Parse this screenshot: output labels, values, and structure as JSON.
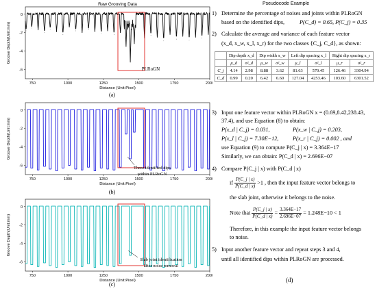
{
  "charts": {
    "a": {
      "title": "Raw Grooving Data",
      "ylabel": "Groove Depth(Unit:mm)",
      "xlabel": "Distance (Unit:Pixel)",
      "caption": "(a)",
      "annotation": "PLRoGN",
      "color": "#111111"
    },
    "b": {
      "ylabel": "Groove Depth(Unit:mm)",
      "xlabel": "Distance (Unit:Pixel)",
      "caption": "(b)",
      "annotation_line1": "Three identified dips",
      "annotation_line2": "within PLRoGN",
      "color": "#1f1fe0"
    },
    "c": {
      "ylabel": "Groove Depth(Unit:mm)",
      "xlabel": "Distance (Unit:Pixel)",
      "caption": "(c)",
      "annotation_line1": "Slab joint identification",
      "annotation_line2": "after noise removal",
      "color": "#10b8b8"
    },
    "yticks": [
      "0",
      "-2",
      "-4",
      "-6"
    ],
    "xticks": [
      "750",
      "1000",
      "1250",
      "1500",
      "1750",
      "2000"
    ]
  },
  "chart_data": [
    {
      "type": "line",
      "title": "Raw Grooving Data",
      "xlabel": "Distance (Unit:Pixel)",
      "ylabel": "Groove Depth(Unit:mm)",
      "xlim": [
        700,
        2000
      ],
      "ylim": [
        -7,
        0.8
      ],
      "grid": false,
      "dip_positions": [
        705,
        745,
        790,
        835,
        875,
        920,
        965,
        1010,
        1055,
        1100,
        1145,
        1190,
        1235,
        1280,
        1325,
        1370,
        1410,
        1440,
        1468,
        1540,
        1585,
        1630,
        1675,
        1720,
        1765,
        1810,
        1855,
        1900,
        1945,
        1990
      ],
      "dip_depths": [
        -1.8,
        -1.5,
        -1.7,
        -2.0,
        -1.6,
        -1.9,
        -2.2,
        -1.4,
        -1.8,
        -2.0,
        -1.7,
        -1.9,
        -2.1,
        -1.8,
        -2.2,
        -2.0,
        -3.5,
        -5.2,
        -3.2,
        -2.6,
        -2.3,
        -2.5,
        -2.9,
        -2.2,
        -2.7,
        -2.4,
        -2.8,
        -2.5,
        -2.6,
        -2.2
      ]
    },
    {
      "type": "line",
      "xlabel": "Distance (Unit:Pixel)",
      "ylabel": "Groove Depth(Unit:mm)",
      "xlim": [
        700,
        2000
      ],
      "ylim": [
        -7,
        0.8
      ],
      "grid": false,
      "dip_positions": [
        705,
        745,
        790,
        835,
        875,
        920,
        965,
        1010,
        1055,
        1100,
        1145,
        1190,
        1235,
        1280,
        1325,
        1370,
        1410,
        1440,
        1468,
        1540,
        1585,
        1630,
        1675,
        1720,
        1765,
        1810,
        1855,
        1900,
        1945,
        1990
      ],
      "dip_depths": [
        -6.2,
        -6.3,
        -6.5,
        -6.1,
        -6.4,
        -6.6,
        -6.3,
        -6.0,
        -6.4,
        -6.5,
        -6.2,
        -6.6,
        -6.3,
        -6.4,
        -6.5,
        -6.2,
        -2.6,
        -5.3,
        -2.4,
        -6.3,
        -6.5,
        -6.2,
        -6.6,
        -6.4,
        -6.3,
        -6.5,
        -6.2,
        -6.6,
        -6.3,
        -6.4
      ]
    },
    {
      "type": "line",
      "xlabel": "Distance (Unit:Pixel)",
      "ylabel": "Groove Depth(Unit:mm)",
      "xlim": [
        700,
        2000
      ],
      "ylim": [
        -7,
        0.8
      ],
      "grid": false,
      "dip_positions": [
        705,
        745,
        790,
        835,
        875,
        920,
        965,
        1010,
        1055,
        1100,
        1145,
        1190,
        1235,
        1280,
        1325,
        1370,
        1440,
        1540,
        1585,
        1630,
        1675,
        1720,
        1765,
        1810,
        1855,
        1900,
        1945,
        1990
      ],
      "dip_depths": [
        -6.2,
        -6.3,
        -6.5,
        -6.1,
        -6.4,
        -6.6,
        -6.3,
        -6.0,
        -6.4,
        -6.5,
        -6.2,
        -6.6,
        -6.3,
        -6.4,
        -6.5,
        -6.2,
        -5.3,
        -6.3,
        -6.5,
        -6.2,
        -6.6,
        -6.4,
        -6.3,
        -6.5,
        -6.2,
        -6.6,
        -6.3,
        -6.4
      ]
    }
  ],
  "pseudo": {
    "title": "Pseudocode Example",
    "caption": "(d)",
    "s1_num": "1)",
    "s1_a": "Determine the percentage of noises and joints within PLRoGN",
    "s1_b": "based on the identified dips,",
    "s1_c": "P(C_d) = 0.65, P(C_j) = 0.35",
    "s2_num": "2)",
    "s2_a": "Calculate the average and variance of each feature vector",
    "s2_b": "(x_d, x_w, x_l, x_r) for the two classes {C_j, C_d}, as shown:",
    "table": {
      "headers": [
        "Dip depth x_d",
        "Dip width x_w",
        "Left dip spacing x_l",
        "Right dip spacing x_r"
      ],
      "subheaders": [
        "μ_d",
        "σ²_d",
        "μ_w",
        "σ²_w",
        "μ_l",
        "σ²_l",
        "μ_r",
        "σ²_r"
      ],
      "rows": [
        {
          "label": "C_j",
          "cells": [
            "4.14",
            "2.98",
            "8.88",
            "3.62",
            "81.63",
            "570.45",
            "126.46",
            "3304.94"
          ]
        },
        {
          "label": "C_d",
          "cells": [
            "0.99",
            "0.20",
            "6.42",
            "6.60",
            "127.04",
            "4253.46",
            "103.60",
            "6301.52"
          ]
        }
      ]
    },
    "s3_num": "3)",
    "s3_a": "Input one feature vector within PLRoGN x = (0.69,8.42,238.43,",
    "s3_b": "37.4), and use Equation (8) to obtain:",
    "s3_c1": "P(x_d | C_j) = 0.031,",
    "s3_c2": "P(x_w | C_j) = 0.203,",
    "s3_d1": "P(x_l | C_j) = 7.30E−12,",
    "s3_d2": "P(x_r | C_j) = 0.002 ,  and",
    "s3_e": "use Equation (9) to compute  P(C_j | x) = 3.364E−17",
    "s3_f": "Similarly, we can obtain:   P(C_d | x) = 2.696E−07",
    "s4_num": "4)",
    "s4_a": "Compare  P(C_j | x)  with  P(C_d | x)",
    "s4_if": "if",
    "s4_frac_n": "P(C_j | x)",
    "s4_frac_d": "P(C_d | x)",
    "s4_b": ">1 ,  then the input feature vector belongs to",
    "s4_c": "the slab joint, otherwise it belongs to the noise.",
    "s4_note": "Note that",
    "s4_n2_n": "P(C_j | x)",
    "s4_n2_d": "P(C_d | x)",
    "s4_eq": "=",
    "s4_n3_n": "3.364E−17",
    "s4_n3_d": "2.696E−07",
    "s4_res": "= 1.248E−10 < 1",
    "s4_d": "Therefore, in this example the input feature vector belongs",
    "s4_e": "to noise.",
    "s5_num": "5)",
    "s5_a": "Input another feature vector and repeat steps 3 and 4,",
    "s5_b": "until all identified dips within PLRoGN are processed."
  }
}
